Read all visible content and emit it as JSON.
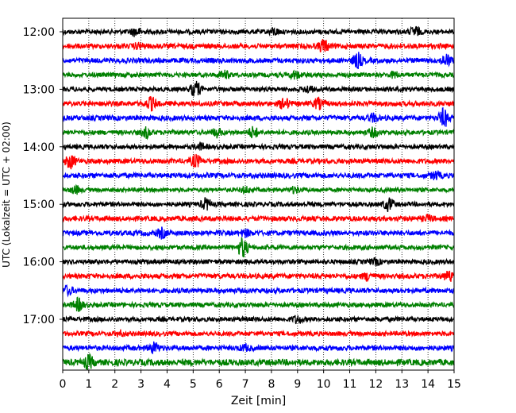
{
  "chart_data": {
    "type": "line",
    "title": "",
    "xlabel": "Zeit  [min]",
    "ylabel": "UTC (Lokalzeit = UTC + 02:00)",
    "xlim": [
      0,
      15
    ],
    "x_ticks": [
      "0",
      "1",
      "2",
      "3",
      "4",
      "5",
      "6",
      "7",
      "8",
      "9",
      "10",
      "11",
      "12",
      "13",
      "14",
      "15"
    ],
    "y_ticks": [
      "12:00",
      "13:00",
      "14:00",
      "15:00",
      "16:00",
      "17:00"
    ],
    "y_tick_rows": [
      0,
      4,
      8,
      12,
      16,
      20
    ],
    "grid": "vertical dotted lines at each minute",
    "color_cycle": [
      "#000000",
      "#ff0000",
      "#0000ff",
      "#008000"
    ],
    "series": [
      {
        "start": "12:00",
        "color": "#000000",
        "amplitude": 0.55,
        "events": [
          {
            "t": 2.8,
            "amp": 0.9
          },
          {
            "t": 8.1,
            "amp": 0.7
          },
          {
            "t": 13.5,
            "amp": 1.1
          }
        ]
      },
      {
        "start": "12:15",
        "color": "#ff0000",
        "amplitude": 0.6,
        "events": [
          {
            "t": 10.0,
            "amp": 1.4
          },
          {
            "t": 2.9,
            "amp": 0.5
          }
        ]
      },
      {
        "start": "12:30",
        "color": "#0000ff",
        "amplitude": 0.6,
        "events": [
          {
            "t": 11.3,
            "amp": 1.6
          },
          {
            "t": 14.7,
            "amp": 1.3
          }
        ]
      },
      {
        "start": "12:45",
        "color": "#008000",
        "amplitude": 0.55,
        "events": [
          {
            "t": 6.2,
            "amp": 0.8
          },
          {
            "t": 8.9,
            "amp": 0.8
          },
          {
            "t": 12.7,
            "amp": 0.6
          }
        ]
      },
      {
        "start": "13:00",
        "color": "#000000",
        "amplitude": 0.55,
        "events": [
          {
            "t": 5.1,
            "amp": 1.7
          },
          {
            "t": 9.4,
            "amp": 0.7
          }
        ]
      },
      {
        "start": "13:15",
        "color": "#ff0000",
        "amplitude": 0.6,
        "events": [
          {
            "t": 3.4,
            "amp": 1.4
          },
          {
            "t": 8.5,
            "amp": 1.2
          },
          {
            "t": 9.8,
            "amp": 1.1
          }
        ]
      },
      {
        "start": "13:30",
        "color": "#0000ff",
        "amplitude": 0.6,
        "events": [
          {
            "t": 14.6,
            "amp": 2.0
          },
          {
            "t": 11.9,
            "amp": 0.8
          }
        ]
      },
      {
        "start": "13:45",
        "color": "#008000",
        "amplitude": 0.55,
        "events": [
          {
            "t": 3.2,
            "amp": 1.1
          },
          {
            "t": 5.9,
            "amp": 0.9
          },
          {
            "t": 7.3,
            "amp": 1.2
          },
          {
            "t": 11.9,
            "amp": 0.9
          }
        ]
      },
      {
        "start": "14:00",
        "color": "#000000",
        "amplitude": 0.55,
        "events": [
          {
            "t": 5.3,
            "amp": 0.6
          }
        ]
      },
      {
        "start": "14:15",
        "color": "#ff0000",
        "amplitude": 0.6,
        "events": [
          {
            "t": 0.3,
            "amp": 1.5
          },
          {
            "t": 5.1,
            "amp": 1.3
          }
        ]
      },
      {
        "start": "14:30",
        "color": "#0000ff",
        "amplitude": 0.6,
        "events": [
          {
            "t": 14.3,
            "amp": 0.8
          }
        ]
      },
      {
        "start": "14:45",
        "color": "#008000",
        "amplitude": 0.5,
        "events": [
          {
            "t": 0.5,
            "amp": 0.8
          },
          {
            "t": 7.0,
            "amp": 0.6
          },
          {
            "t": 8.9,
            "amp": 0.6
          }
        ]
      },
      {
        "start": "15:00",
        "color": "#000000",
        "amplitude": 0.55,
        "events": [
          {
            "t": 5.5,
            "amp": 1.2
          },
          {
            "t": 12.5,
            "amp": 1.4
          }
        ]
      },
      {
        "start": "15:15",
        "color": "#ff0000",
        "amplitude": 0.6,
        "events": [
          {
            "t": 14.0,
            "amp": 0.6
          }
        ]
      },
      {
        "start": "15:30",
        "color": "#0000ff",
        "amplitude": 0.6,
        "events": [
          {
            "t": 3.8,
            "amp": 1.0
          },
          {
            "t": 7.0,
            "amp": 0.7
          }
        ]
      },
      {
        "start": "15:45",
        "color": "#008000",
        "amplitude": 0.55,
        "events": [
          {
            "t": 6.9,
            "amp": 2.2
          }
        ]
      },
      {
        "start": "16:00",
        "color": "#000000",
        "amplitude": 0.55,
        "events": [
          {
            "t": 12.0,
            "amp": 0.6
          }
        ]
      },
      {
        "start": "16:15",
        "color": "#ff0000",
        "amplitude": 0.6,
        "events": [
          {
            "t": 11.7,
            "amp": 0.8
          },
          {
            "t": 14.8,
            "amp": 1.1
          }
        ]
      },
      {
        "start": "16:30",
        "color": "#0000ff",
        "amplitude": 0.6,
        "events": [
          {
            "t": 0.2,
            "amp": 0.9
          }
        ]
      },
      {
        "start": "16:45",
        "color": "#008000",
        "amplitude": 0.55,
        "events": [
          {
            "t": 0.6,
            "amp": 1.4
          }
        ]
      },
      {
        "start": "17:00",
        "color": "#000000",
        "amplitude": 0.55,
        "events": [
          {
            "t": 9.0,
            "amp": 0.8
          }
        ]
      },
      {
        "start": "17:15",
        "color": "#ff0000",
        "amplitude": 0.55,
        "events": [
          {
            "t": 2.2,
            "amp": 0.5
          }
        ]
      },
      {
        "start": "17:30",
        "color": "#0000ff",
        "amplitude": 0.6,
        "events": [
          {
            "t": 3.5,
            "amp": 1.1
          },
          {
            "t": 7.0,
            "amp": 0.6
          }
        ]
      },
      {
        "start": "17:45",
        "color": "#008000",
        "amplitude": 0.75,
        "events": [
          {
            "t": 1.0,
            "amp": 1.3
          }
        ]
      }
    ]
  }
}
